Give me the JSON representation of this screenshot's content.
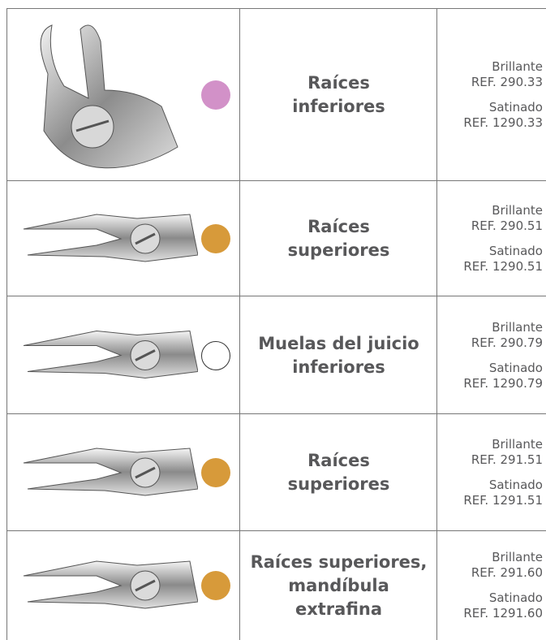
{
  "table": {
    "rows": [
      {
        "name": [
          "Raíces",
          "inferiores"
        ],
        "dot_color": "#d291c8",
        "finishes": [
          {
            "label": "Brillante",
            "ref": "REF. 290.33"
          },
          {
            "label": "Satinado",
            "ref": "REF. 1290.33"
          }
        ]
      },
      {
        "name": [
          "Raíces",
          "superiores"
        ],
        "dot_color": "#d79a3a",
        "finishes": [
          {
            "label": "Brillante",
            "ref": "REF. 290.51"
          },
          {
            "label": "Satinado",
            "ref": "REF. 1290.51"
          }
        ]
      },
      {
        "name": [
          "Muelas del juicio",
          "inferiores"
        ],
        "dot_color": "#ffffff",
        "finishes": [
          {
            "label": "Brillante",
            "ref": "REF. 290.79"
          },
          {
            "label": "Satinado",
            "ref": "REF. 1290.79"
          }
        ]
      },
      {
        "name": [
          "Raíces",
          "superiores"
        ],
        "dot_color": "#d79a3a",
        "finishes": [
          {
            "label": "Brillante",
            "ref": "REF. 291.51"
          },
          {
            "label": "Satinado",
            "ref": "REF. 1291.51"
          }
        ]
      },
      {
        "name": [
          "Raíces superiores,",
          "mandíbula",
          "extrafina"
        ],
        "dot_color": "#d79a3a",
        "finishes": [
          {
            "label": "Brillante",
            "ref": "REF. 291.60"
          },
          {
            "label": "Satinado",
            "ref": "REF. 1291.60"
          }
        ]
      }
    ]
  }
}
